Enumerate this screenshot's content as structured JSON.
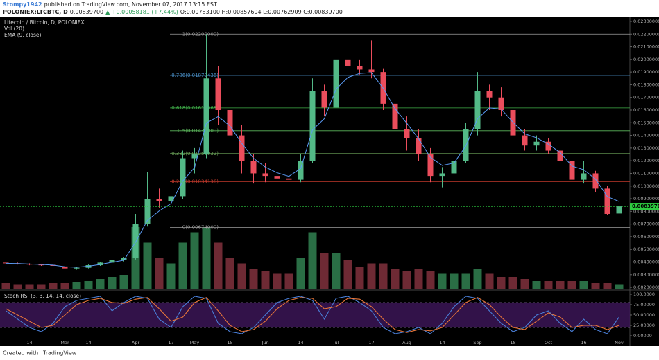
{
  "header": {
    "author": "Stompy1942",
    "published": "published on TradingView.com, November 07, 2017 13:15 EST",
    "symbol": "POLONIEX:LTCBTC, D",
    "price": "0.00839700",
    "change": "▲ +0.00058181 (+7.44%)",
    "ohlc": "O:0.00783100 H:0.00857604 L:0.00762909 C:0.00839700"
  },
  "footer": {
    "created": "Created with",
    "brand": "TradingView"
  },
  "chart_data": [
    {
      "type": "candlestick",
      "title": "Litecoin / Bitcoin, D, POLONIEX",
      "categories": [
        null,
        null,
        "14",
        null,
        null,
        "Mar",
        null,
        "14",
        null,
        null,
        null,
        "Apr",
        null,
        null,
        "17",
        null,
        "May",
        null,
        null,
        "15",
        null,
        null,
        "Jun",
        null,
        null,
        "14",
        null,
        null,
        "Jul",
        null,
        null,
        "17",
        null,
        null,
        "Aug",
        null,
        null,
        "14",
        null,
        null,
        "Sep",
        null,
        null,
        "18",
        null,
        null,
        "Oct",
        null,
        null,
        "16",
        null,
        null,
        "Nov"
      ],
      "open": [
        0.00395,
        0.0039,
        0.00385,
        0.0038,
        0.00378,
        0.0036,
        0.0035,
        0.00355,
        0.00375,
        0.00395,
        0.00415,
        0.0043,
        0.007,
        0.009,
        0.0088,
        0.0092,
        0.0122,
        0.0125,
        0.0185,
        0.016,
        0.014,
        0.012,
        0.011,
        0.0108,
        0.0106,
        0.0105,
        0.012,
        0.0175,
        0.0162,
        0.02,
        0.0195,
        0.0192,
        0.019,
        0.0165,
        0.0145,
        0.0138,
        0.0125,
        0.0108,
        0.011,
        0.012,
        0.0145,
        0.0175,
        0.017,
        0.016,
        0.014,
        0.0132,
        0.0135,
        0.0128,
        0.012,
        0.0105,
        0.011,
        0.0098,
        0.007831
      ],
      "high": [
        0.004,
        0.00395,
        0.0039,
        0.00385,
        0.00382,
        0.0037,
        0.00362,
        0.0038,
        0.004,
        0.00425,
        0.0044,
        0.0078,
        0.0111,
        0.0098,
        0.0095,
        0.0128,
        0.013,
        0.022,
        0.0195,
        0.0165,
        0.0148,
        0.0125,
        0.0118,
        0.0113,
        0.0112,
        0.0125,
        0.0185,
        0.018,
        0.021,
        0.0212,
        0.02,
        0.0215,
        0.0193,
        0.017,
        0.0155,
        0.0145,
        0.013,
        0.0115,
        0.0125,
        0.015,
        0.019,
        0.018,
        0.0178,
        0.0163,
        0.0145,
        0.014,
        0.0138,
        0.013,
        0.0122,
        0.012,
        0.0112,
        0.01,
        0.00857604
      ],
      "low": [
        0.00385,
        0.0038,
        0.00375,
        0.0037,
        0.00365,
        0.00345,
        0.0034,
        0.0035,
        0.0037,
        0.0039,
        0.00405,
        0.0042,
        0.0068,
        0.0083,
        0.0085,
        0.009,
        0.011,
        0.0122,
        0.0148,
        0.013,
        0.011,
        0.0102,
        0.0103,
        0.01,
        0.0101,
        0.0103,
        0.0118,
        0.0155,
        0.016,
        0.0185,
        0.0188,
        0.0185,
        0.016,
        0.014,
        0.0128,
        0.012,
        0.0103,
        0.0099,
        0.0105,
        0.0118,
        0.014,
        0.016,
        0.0155,
        0.0118,
        0.0128,
        0.0128,
        0.0125,
        0.0118,
        0.01,
        0.0102,
        0.0095,
        0.0077,
        0.00762909
      ],
      "close": [
        0.0039,
        0.00385,
        0.0038,
        0.00378,
        0.0037,
        0.0035,
        0.00355,
        0.00375,
        0.00395,
        0.00415,
        0.0043,
        0.007,
        0.009,
        0.0088,
        0.0092,
        0.0122,
        0.0125,
        0.0185,
        0.016,
        0.014,
        0.012,
        0.011,
        0.0108,
        0.0106,
        0.0105,
        0.012,
        0.0175,
        0.0162,
        0.02,
        0.0195,
        0.0192,
        0.019,
        0.0165,
        0.0145,
        0.0138,
        0.0125,
        0.0108,
        0.011,
        0.012,
        0.0145,
        0.0175,
        0.017,
        0.016,
        0.014,
        0.0132,
        0.0135,
        0.0128,
        0.012,
        0.0105,
        0.011,
        0.0098,
        0.0078,
        0.008397
      ],
      "up_color": "#53b987",
      "down_color": "#eb4d5c",
      "ema": {
        "name": "EMA (9, close)",
        "color": "#5b9cf6",
        "values": [
          0.0039,
          0.00388,
          0.00384,
          0.00381,
          0.00376,
          0.00363,
          0.00359,
          0.00367,
          0.00381,
          0.00398,
          0.00414,
          0.00557,
          0.00729,
          0.00804,
          0.00862,
          0.01041,
          0.01146,
          0.01498,
          0.01549,
          0.01475,
          0.01337,
          0.01219,
          0.0115,
          0.01105,
          0.01077,
          0.01139,
          0.01444,
          0.01532,
          0.01766,
          0.01858,
          0.01889,
          0.01895,
          0.01772,
          0.01611,
          0.01496,
          0.01373,
          0.01227,
          0.01163,
          0.01182,
          0.01316,
          0.01533,
          0.01617,
          0.01608,
          0.01504,
          0.01412,
          0.01381,
          0.01331,
          0.01265,
          0.01158,
          0.01129,
          0.01055,
          0.00917,
          0.00878
        ]
      },
      "volume": {
        "name": "Vol (20)",
        "up_color": "#2f7a4c",
        "down_color": "#7a2f3a",
        "values": [
          6,
          5,
          5,
          5,
          6,
          6,
          7,
          8,
          10,
          12,
          14,
          60,
          45,
          30,
          25,
          45,
          55,
          60,
          45,
          30,
          25,
          20,
          18,
          15,
          15,
          30,
          55,
          35,
          35,
          28,
          22,
          25,
          25,
          20,
          18,
          20,
          18,
          15,
          15,
          15,
          20,
          15,
          12,
          12,
          10,
          8,
          8,
          8,
          8,
          8,
          6,
          6,
          5
        ]
      },
      "fib": [
        {
          "value": 0.022,
          "label": "1(0.02200000)",
          "color": "#9e9e9e"
        },
        {
          "value": 0.01873436,
          "label": "0.786(0.01873436)",
          "color": "#4a90c8"
        },
        {
          "value": 0.01617068,
          "label": "0.618(0.01617068)",
          "color": "#3fae49"
        },
        {
          "value": 0.01437,
          "label": "0.5(0.01437000)",
          "color": "#5cb85c"
        },
        {
          "value": 0.01256932,
          "label": "0.382(0.01256932)",
          "color": "#6ca55a"
        },
        {
          "value": 0.01034136,
          "label": "0.236(0.01034136)",
          "color": "#c0392b"
        },
        {
          "value": 0.00674,
          "label": "0(0.00674000)",
          "color": "#9e9e9e"
        }
      ],
      "last_price": {
        "value": 0.008397,
        "label": "0.00839700",
        "color": "#2ecc40"
      },
      "ylim": [
        0.00184,
        0.0236
      ],
      "yticks": [
        {
          "value": 0.002,
          "label": "0.00200000"
        },
        {
          "value": 0.003,
          "label": "0.00300000"
        },
        {
          "value": 0.004,
          "label": "0.00400000"
        },
        {
          "value": 0.005,
          "label": "0.00500000"
        },
        {
          "value": 0.006,
          "label": "0.00600000"
        },
        {
          "value": 0.007,
          "label": "0.00700000"
        },
        {
          "value": 0.008,
          "label": "0.00800000"
        },
        {
          "value": 0.009,
          "label": "0.00900000"
        },
        {
          "value": 0.01,
          "label": "0.01000000"
        },
        {
          "value": 0.011,
          "label": "0.01100000"
        },
        {
          "value": 0.012,
          "label": "0.01200000"
        },
        {
          "value": 0.013,
          "label": "0.01300000"
        },
        {
          "value": 0.014,
          "label": "0.01400000"
        },
        {
          "value": 0.015,
          "label": "0.01500000"
        },
        {
          "value": 0.016,
          "label": "0.01600000"
        },
        {
          "value": 0.017,
          "label": "0.01700000"
        },
        {
          "value": 0.018,
          "label": "0.01800000"
        },
        {
          "value": 0.019,
          "label": "0.01900000"
        },
        {
          "value": 0.02,
          "label": "0.02000000"
        },
        {
          "value": 0.021,
          "label": "0.02100000"
        },
        {
          "value": 0.022,
          "label": "0.02200000"
        },
        {
          "value": 0.023,
          "label": "0.02300000"
        }
      ]
    },
    {
      "type": "line",
      "title": "Stoch RSI (3, 3, 14, 14, close)",
      "series": [
        {
          "name": "K",
          "color": "#4a7fd8",
          "values": [
            60,
            40,
            20,
            10,
            30,
            70,
            85,
            90,
            95,
            60,
            80,
            95,
            90,
            40,
            20,
            70,
            95,
            90,
            30,
            10,
            5,
            20,
            50,
            80,
            90,
            95,
            85,
            40,
            90,
            95,
            80,
            60,
            20,
            5,
            10,
            20,
            5,
            30,
            70,
            95,
            90,
            60,
            30,
            10,
            20,
            50,
            60,
            30,
            10,
            40,
            15,
            5,
            45
          ]
        },
        {
          "name": "D",
          "color": "#e8763a",
          "values": [
            65,
            50,
            35,
            20,
            25,
            50,
            75,
            85,
            90,
            80,
            78,
            88,
            92,
            65,
            35,
            45,
            80,
            92,
            60,
            25,
            10,
            15,
            35,
            65,
            85,
            92,
            90,
            65,
            70,
            90,
            88,
            70,
            40,
            15,
            8,
            15,
            12,
            20,
            50,
            80,
            92,
            75,
            45,
            20,
            15,
            35,
            55,
            45,
            20,
            25,
            25,
            15,
            25
          ]
        }
      ],
      "bands": [
        20,
        80
      ],
      "band_color": "#3b1556",
      "ylim": [
        -11.7,
        108.3
      ],
      "yticks": [
        {
          "value": 0,
          "label": "0.00000"
        },
        {
          "value": 25,
          "label": "25.00000"
        },
        {
          "value": 50,
          "label": "50.00000"
        },
        {
          "value": 75,
          "label": "75.00000"
        },
        {
          "value": 100,
          "label": "100.0000"
        }
      ]
    }
  ]
}
